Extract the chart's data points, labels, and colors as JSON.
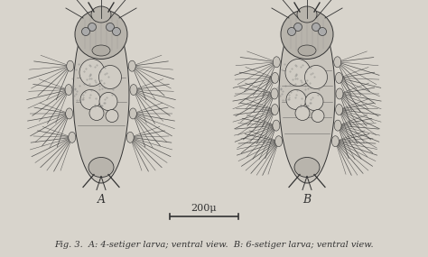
{
  "background_color": "#d8d4cc",
  "fig_width": 4.74,
  "fig_height": 2.85,
  "caption_text": "Fig. 3.  A: 4-setiger larva; ventral view.  B: 6-setiger larva; ventral view.",
  "caption_fontsize": 7.0,
  "label_A": "A",
  "label_B": "B",
  "scale_bar_label": "200μ",
  "label_fontsize": 9,
  "scale_fontsize": 8,
  "body_color": "#c8c4bc",
  "head_color": "#b8b4ac",
  "cell_color": "#d0ccc4",
  "dark_color": "#333333",
  "mid_color": "#777777",
  "bg_text_color": "#888888"
}
